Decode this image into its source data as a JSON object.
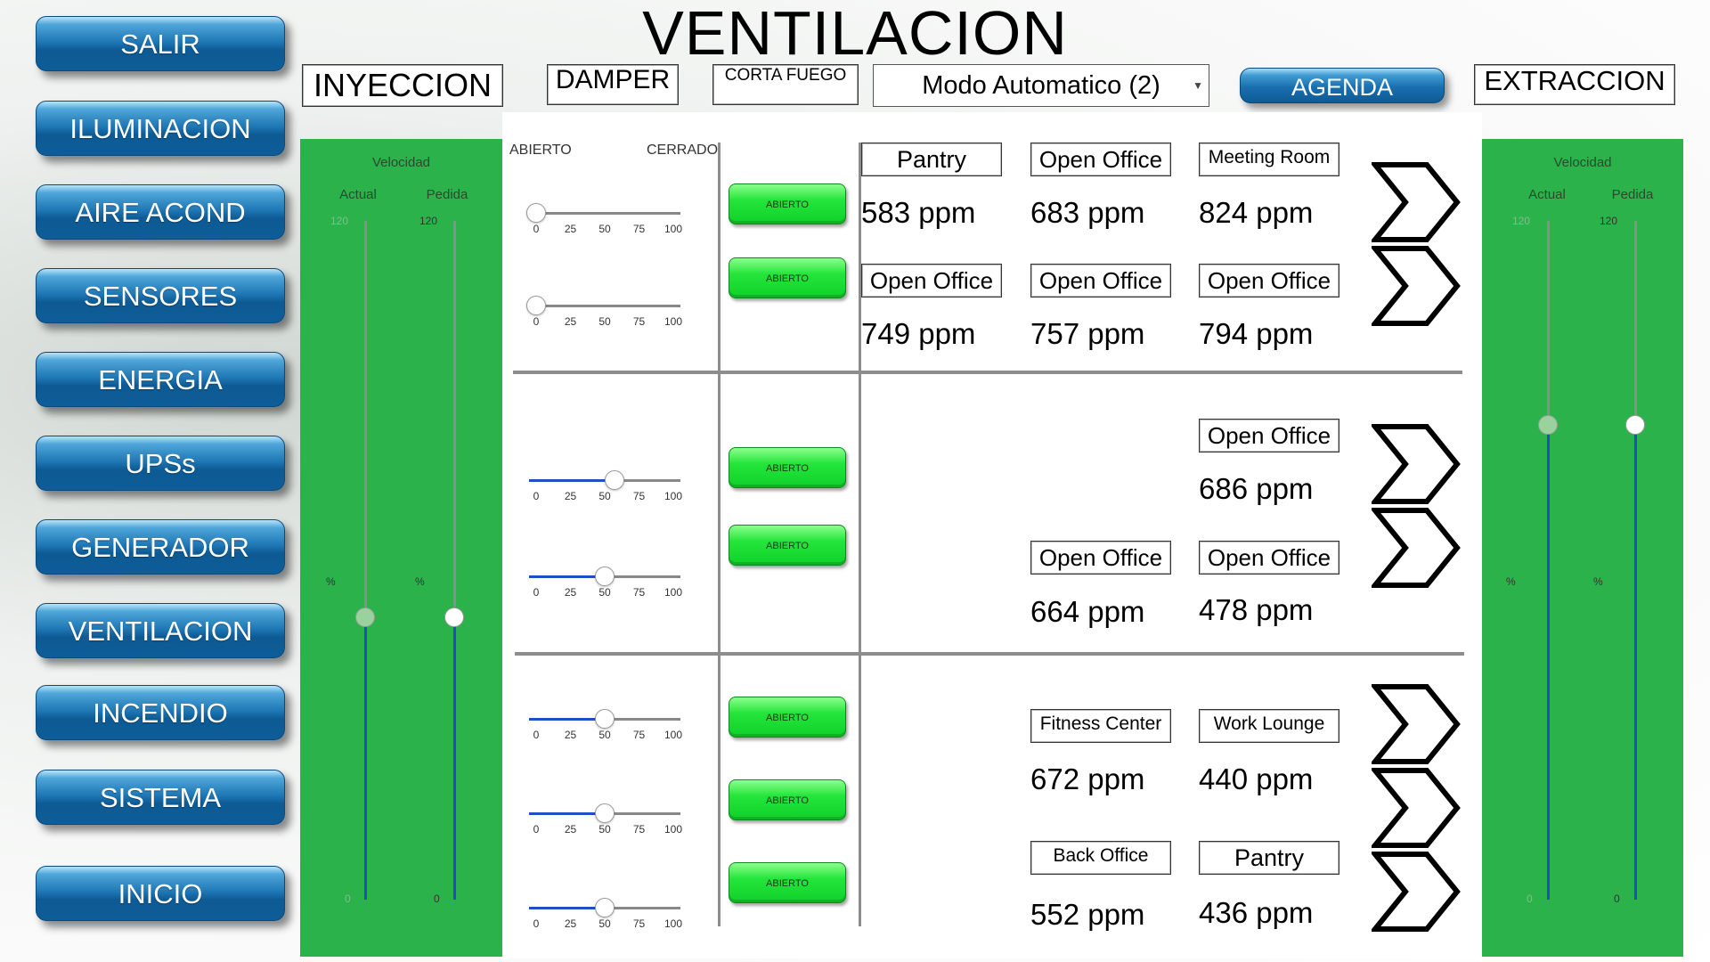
{
  "header": {
    "title": "VENTILACION",
    "inyeccion": "INYECCION",
    "damper": "DAMPER",
    "corta_fuego": "CORTA FUEGO",
    "mode": "Modo Automatico (2)",
    "agenda": "AGENDA",
    "extraccion": "EXTRACCION"
  },
  "nav": {
    "items": [
      {
        "label": "SALIR"
      },
      {
        "label": "ILUMINACION"
      },
      {
        "label": "AIRE ACOND"
      },
      {
        "label": "SENSORES"
      },
      {
        "label": "ENERGIA"
      },
      {
        "label": "UPSs"
      },
      {
        "label": "GENERADOR"
      },
      {
        "label": "VENTILACION"
      },
      {
        "label": "INCENDIO"
      },
      {
        "label": "SISTEMA"
      },
      {
        "label": "INICIO"
      }
    ]
  },
  "inyeccion_panel": {
    "title": "Velocidad",
    "actual_label": "Actual",
    "pedida_label": "Pedida",
    "max": "120",
    "min": "0",
    "unit": "%",
    "actual_value": 50,
    "pedida_value": 50
  },
  "extraccion_panel": {
    "title": "Velocidad",
    "actual_label": "Actual",
    "pedida_label": "Pedida",
    "max": "120",
    "min": "0",
    "unit": "%",
    "actual_value": 84,
    "pedida_value": 84
  },
  "damper_headers": {
    "abierto": "ABIERTO",
    "cerrado": "CERRADO"
  },
  "slider_ticks": [
    "0",
    "25",
    "50",
    "75",
    "100"
  ],
  "damper_sliders": [
    0,
    0,
    57,
    50,
    50,
    50,
    50
  ],
  "firestop_buttons": [
    "ABIERTO",
    "ABIERTO",
    "ABIERTO",
    "ABIERTO",
    "ABIERTO",
    "ABIERTO",
    "ABIERTO"
  ],
  "rooms": [
    {
      "name": "Pantry",
      "value": "583 ppm"
    },
    {
      "name": "Open Office",
      "value": "683 ppm"
    },
    {
      "name": "Meeting Room",
      "value": "824 ppm"
    },
    {
      "name": "Open Office",
      "value": "749 ppm"
    },
    {
      "name": "Open Office",
      "value": "757 ppm"
    },
    {
      "name": "Open Office",
      "value": "794 ppm"
    },
    {
      "name": "Open Office",
      "value": "686 ppm"
    },
    {
      "name": "Open Office",
      "value": "664 ppm"
    },
    {
      "name": "Open Office",
      "value": "478 ppm"
    },
    {
      "name": "Fitness Center",
      "value": "672 ppm"
    },
    {
      "name": "Work Lounge",
      "value": "440 ppm"
    },
    {
      "name": "Back Office",
      "value": "552 ppm"
    },
    {
      "name": "Pantry",
      "value": "436 ppm"
    }
  ],
  "colors": {
    "panel_green": "#2bb24b",
    "button_green": "#23e53a",
    "nav_blue": "#1d75b3",
    "slider_blue": "#1e4fc8"
  }
}
